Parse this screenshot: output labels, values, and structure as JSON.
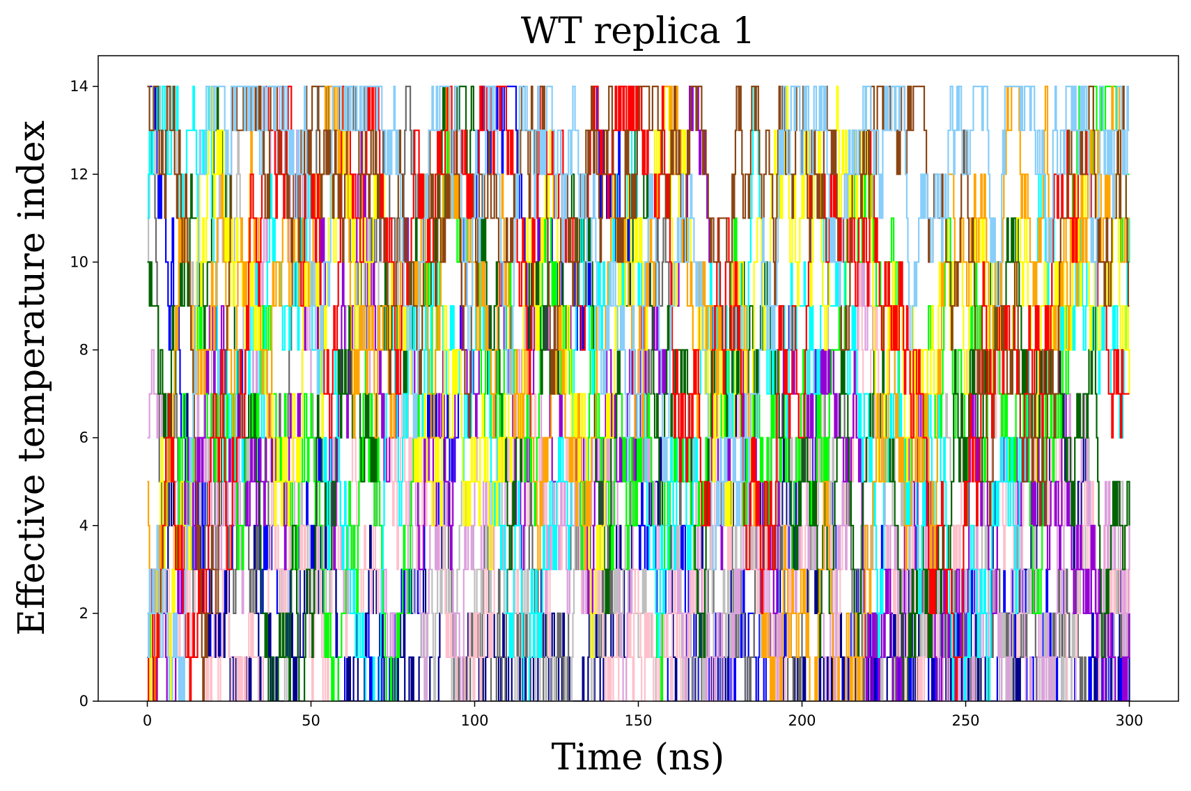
{
  "chart_data": {
    "type": "line",
    "title": "WT replica 1",
    "xlabel": "Time (ns)",
    "ylabel": "Effective temperature index",
    "xlim": [
      -15,
      315
    ],
    "ylim": [
      0,
      14.7
    ],
    "xticks": [
      0,
      50,
      100,
      150,
      200,
      250,
      300
    ],
    "yticks": [
      0,
      2,
      4,
      6,
      8,
      10,
      12,
      14
    ],
    "x_range": [
      0,
      300
    ],
    "y_levels": [
      0,
      1,
      2,
      3,
      4,
      5,
      6,
      7,
      8,
      9,
      10,
      11,
      12,
      13,
      14
    ],
    "grid": false,
    "legend": "none",
    "series_count": 15,
    "series_colors": [
      "#0000ff",
      "#00008b",
      "#696969",
      "#bebebe",
      "#ffc0cb",
      "#dda0dd",
      "#9400d3",
      "#00ff00",
      "#006400",
      "#00ffff",
      "#ffff00",
      "#ffa500",
      "#ff0000",
      "#8b4513",
      "#87cefa"
    ],
    "style": "step traces over discrete temperature indices"
  }
}
